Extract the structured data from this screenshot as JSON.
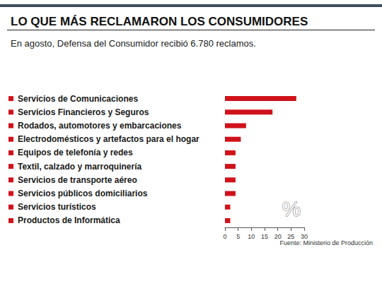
{
  "chart_data": {
    "type": "bar",
    "title": "LO QUE MÁS RECLAMARON LOS CONSUMIDORES",
    "subtitle": "En agosto, Defensa del Consumidor recibió 6.780 reclamos.",
    "source": "Fuente: Ministerio de Producción",
    "annotation": "%",
    "categories": [
      "Servicios de Comunicaciones",
      "Servicios Financieros y Seguros",
      "Rodados, automotores y embarcaciones",
      "Electrodomésticos y artefactos para el hogar",
      "Equipos de telefonía y redes",
      "Textil, calzado y marroquinería",
      "Servicios de transporte aéreo",
      "Servicios públicos domiciliarios",
      "Servicios turísticos",
      "Productos de Informática"
    ],
    "values": [
      27,
      18,
      8,
      6,
      4,
      4,
      4,
      4,
      2,
      2
    ],
    "color": "#d0121b",
    "orientation": "horizontal",
    "xlim": [
      0,
      30
    ],
    "xticks": [
      0,
      5,
      10,
      15,
      20,
      25,
      30
    ],
    "grid": false
  }
}
